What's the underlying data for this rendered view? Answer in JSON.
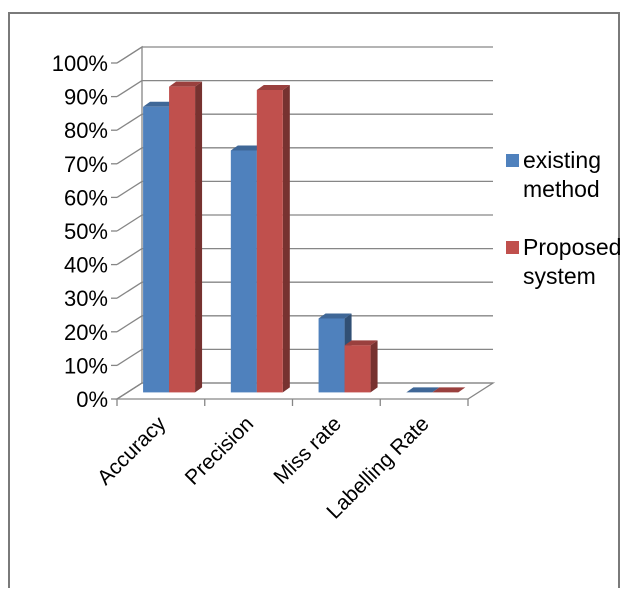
{
  "chart_data": {
    "type": "bar",
    "style": "3d-clustered-column",
    "categories": [
      "Accuracy",
      "Precision",
      "Miss rate",
      "Labelling Rate"
    ],
    "series": [
      {
        "name": "existing method",
        "values": [
          85,
          72,
          22,
          0
        ],
        "color": "#4F81BD"
      },
      {
        "name": "Proposed system",
        "values": [
          91,
          90,
          14,
          0
        ],
        "color": "#C0504D"
      }
    ],
    "yticks": [
      "0%",
      "10%",
      "20%",
      "30%",
      "40%",
      "50%",
      "60%",
      "70%",
      "80%",
      "90%",
      "100%"
    ],
    "ylim": [
      0,
      100
    ],
    "grid": true,
    "legend_position": "right"
  }
}
